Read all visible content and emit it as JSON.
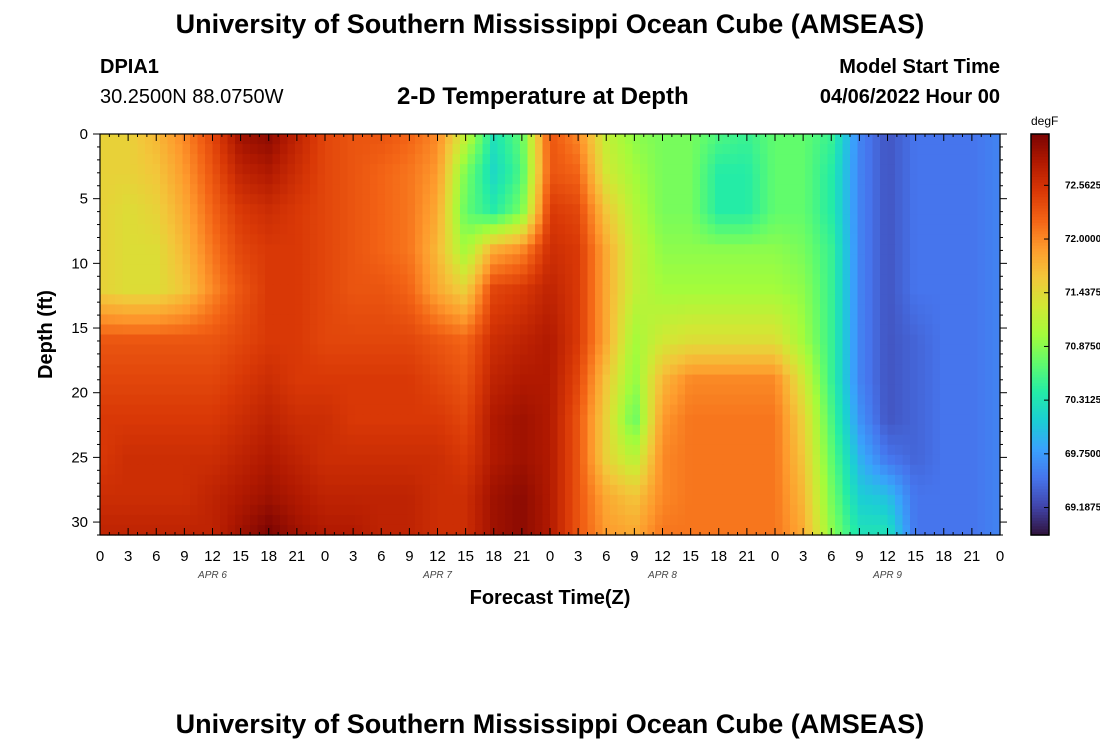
{
  "header": {
    "title": "University of Southern Mississippi Ocean Cube (AMSEAS)",
    "station": "DPIA1",
    "coords": "30.2500N  88.0750W",
    "plot_title": "2-D Temperature at Depth",
    "model_start_label": "Model Start Time",
    "model_start_value": "04/06/2022 Hour 00"
  },
  "footer": {
    "title": "University of Southern Mississippi Ocean Cube (AMSEAS)"
  },
  "colors": {
    "colormap": [
      "#30123b",
      "#4145ab",
      "#4675ed",
      "#39a2fc",
      "#1bcfd4",
      "#24eca6",
      "#61fc6c",
      "#a4fc3b",
      "#d1e834",
      "#f3c63a",
      "#fe9b2d",
      "#f36315",
      "#d93806",
      "#b11901",
      "#7a0402"
    ]
  },
  "chart_data": {
    "type": "heatmap",
    "title": "2-D Temperature at Depth",
    "xlabel": "Forecast Time(Z)",
    "ylabel": "Depth (ft)",
    "x_hours": [
      0,
      3,
      6,
      9,
      12,
      15,
      18,
      21,
      24,
      27,
      30,
      33,
      36,
      39,
      42,
      45,
      48,
      51,
      54,
      57,
      60,
      63,
      66,
      69,
      72,
      75,
      78,
      81,
      84,
      87,
      90,
      93,
      96
    ],
    "x_tick_labels": [
      "0",
      "3",
      "6",
      "9",
      "12",
      "15",
      "18",
      "21",
      "0",
      "3",
      "6",
      "9",
      "12",
      "15",
      "18",
      "21",
      "0",
      "3",
      "6",
      "9",
      "12",
      "15",
      "18",
      "21",
      "0",
      "3",
      "6",
      "9",
      "12",
      "15",
      "18",
      "21",
      "0"
    ],
    "date_labels": [
      {
        "label": "APR 6",
        "hour": 12
      },
      {
        "label": "APR 7",
        "hour": 36
      },
      {
        "label": "APR 8",
        "hour": 60
      },
      {
        "label": "APR 9",
        "hour": 84
      }
    ],
    "y_ticks": [
      0,
      5,
      10,
      15,
      20,
      25,
      30
    ],
    "xlim": [
      0,
      96
    ],
    "ylim": [
      0,
      31
    ],
    "colorbar": {
      "unit": "degF",
      "range": [
        68.9,
        73.1
      ],
      "tick_values": [
        72.5625,
        72.0,
        71.4375,
        70.875,
        70.3125,
        69.75,
        69.1875
      ],
      "tick_labels": [
        "72.5625",
        "72.0000",
        "71.4375",
        "70.8750",
        "70.3125",
        "69.7500",
        "69.1875"
      ]
    },
    "depth_levels_ft": [
      0,
      3,
      6,
      9,
      12,
      16,
      19,
      22,
      25,
      28,
      31
    ],
    "temperature_degF": [
      [
        71.5,
        71.5,
        71.7,
        72.0,
        72.4,
        72.9,
        73.0,
        72.7,
        72.4,
        72.3,
        72.3,
        72.2,
        72.0,
        71.2,
        70.3,
        70.7,
        72.3,
        72.0,
        71.2,
        70.9,
        70.8,
        70.8,
        70.6,
        70.5,
        70.7,
        70.7,
        70.5,
        69.6,
        69.3,
        69.5,
        69.5,
        69.5,
        69.6
      ],
      [
        71.5,
        71.5,
        71.6,
        71.9,
        72.3,
        72.7,
        72.8,
        72.6,
        72.4,
        72.3,
        72.2,
        72.1,
        71.9,
        70.8,
        70.2,
        70.6,
        72.3,
        72.2,
        71.3,
        71.0,
        70.8,
        70.8,
        70.4,
        70.4,
        70.7,
        70.7,
        70.4,
        69.6,
        69.3,
        69.5,
        69.5,
        69.5,
        69.6
      ],
      [
        71.5,
        71.4,
        71.5,
        71.8,
        72.2,
        72.5,
        72.6,
        72.5,
        72.4,
        72.3,
        72.2,
        72.1,
        71.8,
        70.7,
        70.4,
        70.8,
        72.5,
        72.4,
        71.6,
        71.1,
        70.8,
        70.8,
        70.4,
        70.4,
        70.7,
        70.7,
        70.4,
        69.6,
        69.3,
        69.5,
        69.5,
        69.5,
        69.6
      ],
      [
        71.5,
        71.4,
        71.4,
        71.7,
        72.1,
        72.4,
        72.5,
        72.5,
        72.4,
        72.3,
        72.2,
        72.1,
        71.7,
        71.0,
        71.8,
        72.0,
        72.6,
        72.5,
        71.8,
        71.2,
        70.9,
        70.9,
        70.9,
        70.9,
        70.9,
        70.8,
        70.5,
        69.6,
        69.3,
        69.5,
        69.5,
        69.5,
        69.6
      ],
      [
        71.5,
        71.4,
        71.4,
        71.6,
        72.0,
        72.3,
        72.5,
        72.5,
        72.4,
        72.3,
        72.3,
        72.2,
        71.8,
        71.5,
        72.4,
        72.5,
        72.7,
        72.5,
        71.8,
        71.2,
        71.0,
        71.0,
        71.0,
        71.0,
        71.0,
        70.9,
        70.5,
        69.6,
        69.3,
        69.5,
        69.5,
        69.5,
        69.6
      ],
      [
        72.3,
        72.3,
        72.3,
        72.3,
        72.3,
        72.4,
        72.5,
        72.5,
        72.4,
        72.4,
        72.4,
        72.4,
        72.3,
        72.2,
        72.6,
        72.7,
        72.8,
        72.5,
        71.8,
        71.0,
        71.3,
        71.4,
        71.4,
        71.4,
        71.4,
        71.0,
        70.5,
        69.6,
        69.3,
        69.4,
        69.5,
        69.5,
        69.6
      ],
      [
        72.4,
        72.4,
        72.4,
        72.4,
        72.4,
        72.5,
        72.6,
        72.5,
        72.5,
        72.5,
        72.5,
        72.5,
        72.4,
        72.3,
        72.7,
        72.8,
        72.8,
        72.4,
        71.6,
        70.9,
        71.7,
        72.0,
        72.0,
        72.0,
        72.0,
        71.3,
        70.5,
        69.6,
        69.3,
        69.4,
        69.5,
        69.5,
        69.6
      ],
      [
        72.5,
        72.5,
        72.5,
        72.5,
        72.5,
        72.6,
        72.7,
        72.6,
        72.6,
        72.5,
        72.5,
        72.5,
        72.5,
        72.4,
        72.8,
        72.9,
        72.8,
        72.3,
        71.5,
        70.7,
        71.9,
        72.1,
        72.1,
        72.1,
        72.1,
        71.5,
        70.6,
        69.7,
        69.3,
        69.4,
        69.5,
        69.5,
        69.6
      ],
      [
        72.5,
        72.6,
        72.6,
        72.6,
        72.6,
        72.7,
        72.8,
        72.7,
        72.6,
        72.6,
        72.6,
        72.6,
        72.6,
        72.5,
        72.8,
        72.9,
        72.8,
        72.3,
        71.5,
        71.1,
        72.0,
        72.1,
        72.1,
        72.1,
        72.1,
        71.6,
        70.7,
        69.9,
        69.5,
        69.4,
        69.5,
        69.5,
        69.6
      ],
      [
        72.6,
        72.6,
        72.6,
        72.6,
        72.7,
        72.8,
        72.9,
        72.8,
        72.7,
        72.7,
        72.7,
        72.7,
        72.6,
        72.6,
        72.9,
        73.0,
        72.8,
        72.3,
        71.8,
        71.6,
        72.0,
        72.1,
        72.1,
        72.1,
        72.1,
        71.7,
        70.8,
        70.1,
        70.0,
        69.5,
        69.5,
        69.5,
        69.6
      ],
      [
        72.7,
        72.7,
        72.7,
        72.7,
        72.7,
        72.9,
        73.1,
        72.9,
        72.8,
        72.8,
        72.7,
        72.7,
        72.6,
        72.6,
        72.9,
        73.0,
        72.8,
        72.3,
        71.9,
        71.8,
        72.1,
        72.1,
        72.1,
        72.1,
        72.1,
        71.8,
        70.9,
        70.3,
        70.3,
        69.5,
        69.5,
        69.5,
        69.6
      ]
    ]
  }
}
